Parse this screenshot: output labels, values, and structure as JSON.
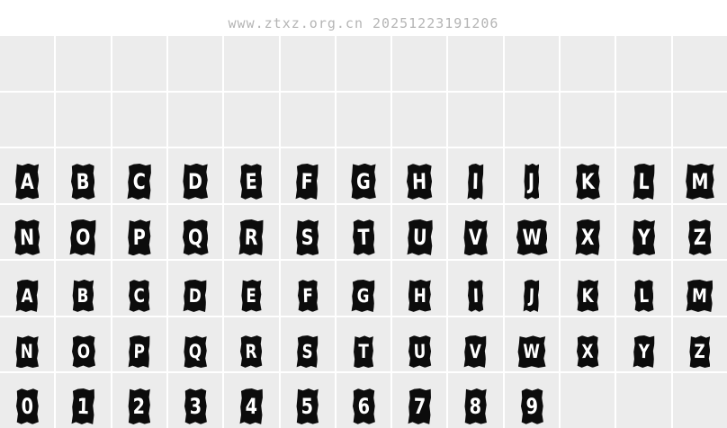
{
  "watermark": "www.ztxz.org.cn 20251223191206",
  "colors": {
    "page_background": "#ffffff",
    "cell_background": "#ececec",
    "glyph_badge": "#0c0c0c",
    "glyph_text": "#ffffff",
    "watermark_text": "#b5b5b5"
  },
  "grid": {
    "columns": 13,
    "rows": [
      {
        "name": "empty-row-1",
        "size": "large",
        "cells": []
      },
      {
        "name": "empty-row-2",
        "size": "large",
        "cells": []
      },
      {
        "name": "uppercase-a-m",
        "size": "large",
        "cells": [
          "A",
          "B",
          "C",
          "D",
          "E",
          "F",
          "G",
          "H",
          "I",
          "J",
          "K",
          "L",
          "M"
        ]
      },
      {
        "name": "uppercase-n-z",
        "size": "large",
        "cells": [
          "N",
          "O",
          "P",
          "Q",
          "R",
          "S",
          "T",
          "U",
          "V",
          "W",
          "X",
          "Y",
          "Z"
        ]
      },
      {
        "name": "lowercase-a-m",
        "size": "small",
        "cells": [
          "A",
          "B",
          "C",
          "D",
          "E",
          "F",
          "G",
          "H",
          "I",
          "J",
          "K",
          "L",
          "M"
        ]
      },
      {
        "name": "lowercase-n-z",
        "size": "small",
        "cells": [
          "N",
          "O",
          "P",
          "Q",
          "R",
          "S",
          "T",
          "U",
          "V",
          "W",
          "X",
          "Y",
          "Z"
        ]
      },
      {
        "name": "digits-0-9",
        "size": "large",
        "cells": [
          "0",
          "1",
          "2",
          "3",
          "4",
          "5",
          "6",
          "7",
          "8",
          "9"
        ]
      }
    ]
  }
}
